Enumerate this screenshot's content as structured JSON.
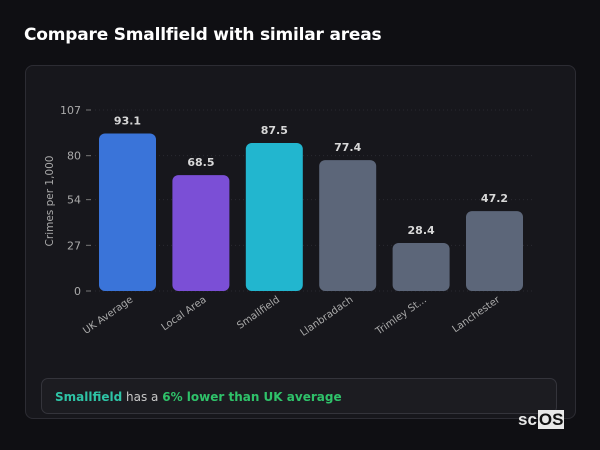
{
  "title": "Compare Smallfield with similar areas",
  "chart_data": {
    "type": "bar",
    "ylabel": "Crimes per 1,000",
    "ylim": [
      0,
      107
    ],
    "yticks": [
      0,
      27,
      54,
      80,
      107
    ],
    "grid": true,
    "categories": [
      "UK Average",
      "Local Area",
      "Smallfield",
      "Llanbradach",
      "Trimley St...",
      "Lanchester"
    ],
    "values": [
      93.1,
      68.5,
      87.5,
      77.4,
      28.4,
      47.2
    ],
    "data_labels": [
      "93.1",
      "68.5",
      "87.5",
      "77.4",
      "28.4",
      "47.2"
    ],
    "colors": [
      "#3a74d9",
      "#7b4fd6",
      "#22b6cf",
      "#5c6679",
      "#5c6679",
      "#5c6679"
    ]
  },
  "footer": {
    "area": "Smallfield",
    "text": " has a ",
    "comparison": "6% lower than UK average"
  },
  "logo": {
    "prefix": "sc",
    "suffix": "OS"
  }
}
